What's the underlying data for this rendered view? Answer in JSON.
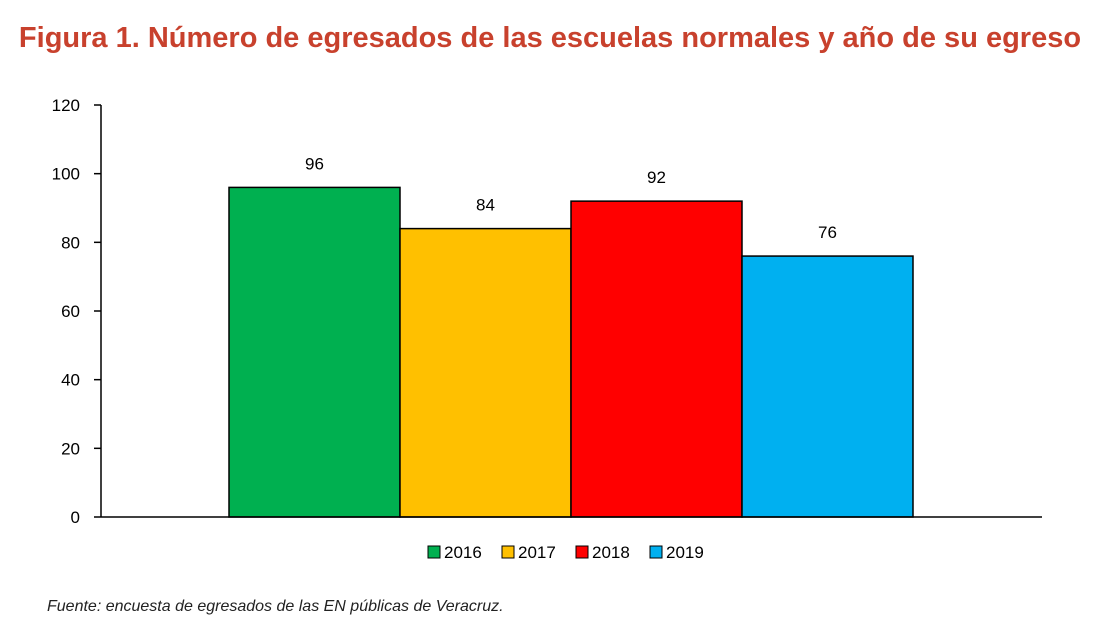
{
  "chart_data": {
    "type": "bar",
    "title": "Figura 1. Número de egresados de las escuelas normales y año de su egreso",
    "xlabel": "",
    "ylabel": "",
    "ylim": [
      0,
      120
    ],
    "yticks": [
      0,
      20,
      40,
      60,
      80,
      100,
      120
    ],
    "categories": [
      ""
    ],
    "series": [
      {
        "name": "2016",
        "values": [
          96
        ],
        "color": "#00b050"
      },
      {
        "name": "2017",
        "values": [
          84
        ],
        "color": "#ffc000"
      },
      {
        "name": "2018",
        "values": [
          92
        ],
        "color": "#ff0000"
      },
      {
        "name": "2019",
        "values": [
          76
        ],
        "color": "#00b0f0"
      }
    ],
    "legend_position": "bottom",
    "grid": false
  },
  "source_note": "Fuente: encuesta de egresados de las EN públicas de Veracruz."
}
